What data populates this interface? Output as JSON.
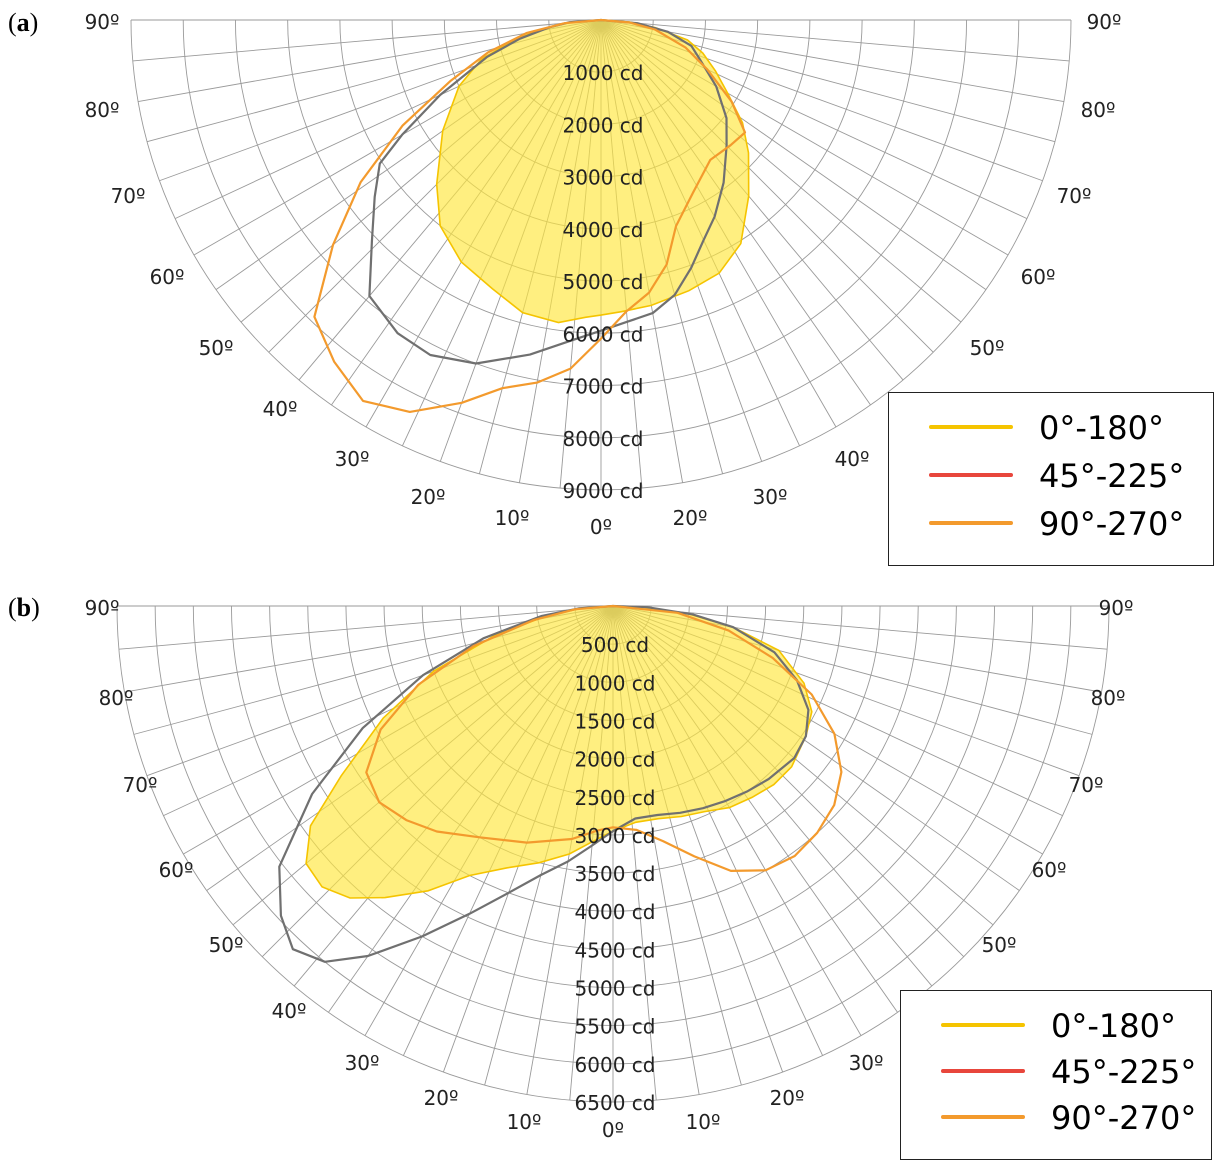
{
  "panel_labels": [
    "a",
    "b"
  ],
  "legend": [
    {
      "label": "0°-180°",
      "color": "#f5c400"
    },
    {
      "label": "45°-225°",
      "color": "#e8463c"
    },
    {
      "label": "90°-270°",
      "color": "#f39a2d"
    }
  ],
  "chart_data": [
    {
      "type": "line",
      "subtype": "polar-photometric",
      "panel": "a",
      "unit": "cd",
      "radial_max": 9000,
      "radial_ticks": [
        "1000 cd",
        "2000 cd",
        "3000 cd",
        "4000 cd",
        "5000 cd",
        "6000 cd",
        "7000 cd",
        "8000 cd",
        "9000 cd"
      ],
      "radial_values": [
        1000,
        2000,
        3000,
        4000,
        5000,
        6000,
        7000,
        8000,
        9000
      ],
      "angle_ticks_left": [
        "90º",
        "80º",
        "70º",
        "60º",
        "50º",
        "40º",
        "30º",
        "20º",
        "10º"
      ],
      "angle_ticks_right": [
        "90º",
        "80º",
        "70º",
        "60º",
        "50º",
        "40º",
        "30º",
        "20º",
        "10º"
      ],
      "angle_tick_center": "0º",
      "legend_position": "bottom-right",
      "series": [
        {
          "name": "0°-180°",
          "color": "#f5c400",
          "filled": true,
          "points": [
            [
              -90,
              0
            ],
            [
              -85,
              700
            ],
            [
              -80,
              1300
            ],
            [
              -76,
              1800
            ],
            [
              -72,
              2400
            ],
            [
              -65,
              3000
            ],
            [
              -55,
              3700
            ],
            [
              -45,
              4450
            ],
            [
              -38,
              5000
            ],
            [
              -30,
              5350
            ],
            [
              -22,
              5550
            ],
            [
              -15,
              5800
            ],
            [
              -8,
              5850
            ],
            [
              -3,
              5700
            ],
            [
              0,
              5650
            ],
            [
              4,
              5600
            ],
            [
              10,
              5550
            ],
            [
              18,
              5450
            ],
            [
              25,
              5350
            ],
            [
              32,
              5050
            ],
            [
              40,
              4400
            ],
            [
              48,
              3800
            ],
            [
              54,
              3350
            ],
            [
              60,
              2800
            ],
            [
              66,
              2400
            ],
            [
              72,
              2050
            ],
            [
              77,
              1700
            ],
            [
              82,
              1050
            ],
            [
              86,
              550
            ],
            [
              90,
              0
            ]
          ]
        },
        {
          "name": "",
          "color": "#707070",
          "filled": false,
          "points": [
            [
              -90,
              0
            ],
            [
              -86,
              600
            ],
            [
              -82,
              1000
            ],
            [
              -77,
              1600
            ],
            [
              -72,
              2300
            ],
            [
              -65,
              3400
            ],
            [
              -60,
              4400
            ],
            [
              -57,
              5050
            ],
            [
              -52,
              5500
            ],
            [
              -46,
              6100
            ],
            [
              -40,
              6900
            ],
            [
              -33,
              7150
            ],
            [
              -27,
              7200
            ],
            [
              -20,
              7000
            ],
            [
              -12,
              6550
            ],
            [
              -5,
              6150
            ],
            [
              0,
              5950
            ],
            [
              5,
              5800
            ],
            [
              10,
              5700
            ],
            [
              15,
              5450
            ],
            [
              20,
              5050
            ],
            [
              25,
              4650
            ],
            [
              30,
              4350
            ],
            [
              37,
              3900
            ],
            [
              45,
              3400
            ],
            [
              52,
              3050
            ],
            [
              60,
              2550
            ],
            [
              68,
              2050
            ],
            [
              74,
              1800
            ],
            [
              80,
              1300
            ],
            [
              85,
              700
            ],
            [
              90,
              0
            ]
          ]
        },
        {
          "name": "90°-270°",
          "color": "#f39a2d",
          "filled": false,
          "points": [
            [
              -90,
              0
            ],
            [
              -85,
              700
            ],
            [
              -80,
              1450
            ],
            [
              -74,
              2250
            ],
            [
              -68,
              3100
            ],
            [
              -62,
              4300
            ],
            [
              -56,
              5550
            ],
            [
              -50,
              6700
            ],
            [
              -44,
              7900
            ],
            [
              -38,
              8300
            ],
            [
              -32,
              8600
            ],
            [
              -26,
              8350
            ],
            [
              -20,
              7800
            ],
            [
              -15,
              7300
            ],
            [
              -10,
              7050
            ],
            [
              -5,
              6700
            ],
            [
              0,
              6100
            ],
            [
              5,
              5600
            ],
            [
              10,
              5300
            ],
            [
              15,
              4850
            ],
            [
              20,
              4200
            ],
            [
              28,
              3750
            ],
            [
              38,
              3400
            ],
            [
              46,
              3450
            ],
            [
              52,
              3500
            ],
            [
              58,
              2950
            ],
            [
              65,
              2250
            ],
            [
              72,
              1700
            ],
            [
              80,
              1050
            ],
            [
              85,
              550
            ],
            [
              90,
              0
            ]
          ]
        }
      ]
    },
    {
      "type": "line",
      "subtype": "polar-photometric",
      "panel": "b",
      "unit": "cd",
      "radial_max": 6500,
      "radial_ticks": [
        "500 cd",
        "1000 cd",
        "1500 cd",
        "2000 cd",
        "2500 cd",
        "3000 cd",
        "3500 cd",
        "4000 cd",
        "4500 cd",
        "5000 cd",
        "5500 cd",
        "6000 cd",
        "6500 cd"
      ],
      "radial_values": [
        500,
        1000,
        1500,
        2000,
        2500,
        3000,
        3500,
        4000,
        4500,
        5000,
        5500,
        6000,
        6500
      ],
      "angle_ticks_left": [
        "90º",
        "80º",
        "70º",
        "60º",
        "50º",
        "40º",
        "30º",
        "20º",
        "10º"
      ],
      "angle_ticks_right": [
        "90º",
        "80º",
        "70º",
        "60º",
        "50º",
        "30º",
        "20º",
        "10º"
      ],
      "angle_tick_center": "0º",
      "legend_position": "bottom-right",
      "series": [
        {
          "name": "0°-180°",
          "color": "#f5c400",
          "filled": true,
          "points": [
            [
              -90,
              0
            ],
            [
              -86,
              400
            ],
            [
              -82,
              850
            ],
            [
              -76,
              1600
            ],
            [
              -70,
              2500
            ],
            [
              -64,
              3350
            ],
            [
              -58,
              4200
            ],
            [
              -54,
              4900
            ],
            [
              -50,
              5250
            ],
            [
              -46,
              5300
            ],
            [
              -42,
              5150
            ],
            [
              -38,
              4850
            ],
            [
              -33,
              4450
            ],
            [
              -28,
              4000
            ],
            [
              -22,
              3700
            ],
            [
              -16,
              3500
            ],
            [
              -10,
              3300
            ],
            [
              -5,
              3100
            ],
            [
              0,
              2950
            ],
            [
              6,
              2850
            ],
            [
              12,
              2850
            ],
            [
              18,
              2900
            ],
            [
              24,
              2950
            ],
            [
              30,
              3050
            ],
            [
              36,
              3100
            ],
            [
              42,
              3150
            ],
            [
              48,
              3150
            ],
            [
              56,
              3050
            ],
            [
              62,
              2950
            ],
            [
              68,
              2700
            ],
            [
              75,
              2250
            ],
            [
              80,
              1600
            ],
            [
              84,
              1000
            ],
            [
              88,
              400
            ],
            [
              90,
              0
            ]
          ]
        },
        {
          "name": "",
          "color": "#707070",
          "filled": false,
          "points": [
            [
              -90,
              0
            ],
            [
              -86,
              450
            ],
            [
              -82,
              950
            ],
            [
              -76,
              1750
            ],
            [
              -70,
              2650
            ],
            [
              -64,
              3650
            ],
            [
              -58,
              4650
            ],
            [
              -52,
              5550
            ],
            [
              -47,
              5950
            ],
            [
              -43,
              6150
            ],
            [
              -39,
              6000
            ],
            [
              -35,
              5600
            ],
            [
              -30,
              5000
            ],
            [
              -25,
              4450
            ],
            [
              -20,
              4000
            ],
            [
              -15,
              3650
            ],
            [
              -10,
              3400
            ],
            [
              -5,
              3150
            ],
            [
              0,
              2950
            ],
            [
              6,
              2800
            ],
            [
              12,
              2800
            ],
            [
              18,
              2850
            ],
            [
              24,
              2900
            ],
            [
              30,
              2950
            ],
            [
              36,
              3000
            ],
            [
              42,
              3050
            ],
            [
              50,
              3100
            ],
            [
              56,
              3050
            ],
            [
              62,
              2900
            ],
            [
              68,
              2600
            ],
            [
              74,
              2200
            ],
            [
              80,
              1600
            ],
            [
              84,
              1050
            ],
            [
              88,
              450
            ],
            [
              90,
              0
            ]
          ]
        },
        {
          "name": "90°-270°",
          "color": "#f39a2d",
          "filled": false,
          "points": [
            [
              -90,
              0
            ],
            [
              -85,
              500
            ],
            [
              -80,
              1050
            ],
            [
              -74,
              1900
            ],
            [
              -68,
              2750
            ],
            [
              -62,
              3450
            ],
            [
              -56,
              3900
            ],
            [
              -50,
              4000
            ],
            [
              -44,
              3900
            ],
            [
              -38,
              3750
            ],
            [
              -30,
              3500
            ],
            [
              -20,
              3300
            ],
            [
              -10,
              3100
            ],
            [
              -4,
              2950
            ],
            [
              0,
              2900
            ],
            [
              6,
              2950
            ],
            [
              12,
              3150
            ],
            [
              18,
              3450
            ],
            [
              24,
              3800
            ],
            [
              30,
              4000
            ],
            [
              36,
              4050
            ],
            [
              42,
              4000
            ],
            [
              48,
              3900
            ],
            [
              54,
              3700
            ],
            [
              60,
              3350
            ],
            [
              66,
              2850
            ],
            [
              72,
              2200
            ],
            [
              78,
              1550
            ],
            [
              84,
              850
            ],
            [
              90,
              0
            ]
          ]
        }
      ]
    }
  ]
}
